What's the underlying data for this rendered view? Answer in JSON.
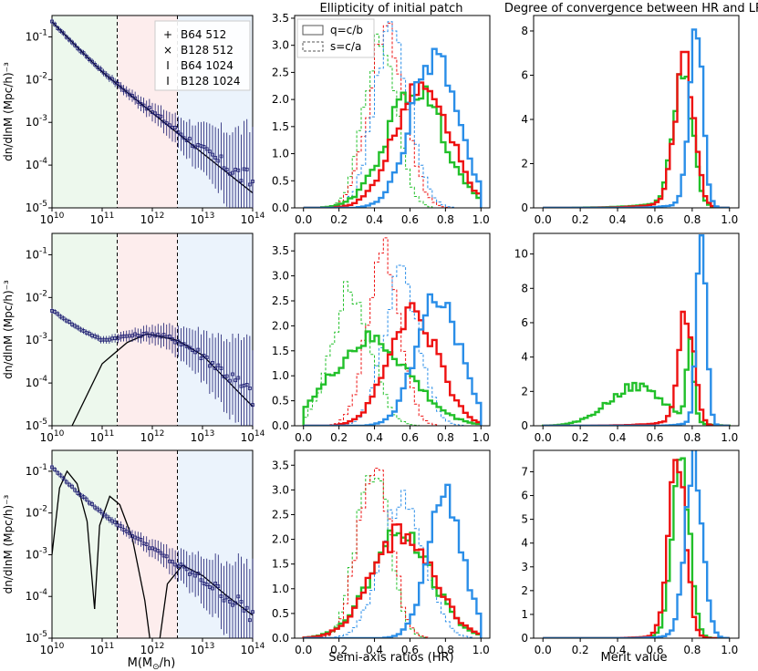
{
  "figure": {
    "col_titles": [
      "",
      "Ellipticity of initial patch",
      "Degree of convergence between HR and LR"
    ],
    "col_xlabels": [
      "M(M_⊙/h)",
      "Semi-axis ratios (HR)",
      "Merit value"
    ],
    "colors": {
      "green": "#22c02a",
      "red": "#ee1111",
      "blue": "#2a8ee8",
      "navy": "#191970",
      "band_low": "#edf8ed",
      "band_mid": "#fdeded",
      "band_high": "#ebf3fc"
    }
  },
  "mass_axes": {
    "ylabel": "dn/dlnM (Mpc/h)⁻³",
    "xticks": [
      "10^10",
      "10^11",
      "10^12",
      "10^13",
      "10^14"
    ],
    "yticks": [
      "10^-5",
      "10^-4",
      "10^-3",
      "10^-2",
      "10^-1"
    ],
    "xlim_log": [
      10,
      14
    ],
    "ylim_log": [
      -5,
      -0.5
    ],
    "band_edges_log": [
      11.3,
      12.5
    ]
  },
  "legend_mass": [
    "B64 512",
    "B128 512",
    "B64 1024",
    "B128 1024"
  ],
  "legend_ratio": [
    "q=c/b",
    "s=c/a"
  ],
  "chart_data": [
    {
      "type": "scatter",
      "panel": "row1-mass-function",
      "xscale": "log",
      "yscale": "log",
      "x": [
        10,
        10.5,
        11,
        11.5,
        12,
        12.5,
        13,
        13.5,
        14
      ],
      "y": [
        -0.65,
        -1.25,
        -1.8,
        -2.3,
        -2.75,
        -3.2,
        -3.65,
        -4.05,
        -4.4
      ],
      "model_curve": [
        [
          10,
          -0.65
        ],
        [
          11,
          -1.82
        ],
        [
          12,
          -2.78
        ],
        [
          13,
          -3.72
        ],
        [
          14,
          -4.65
        ]
      ]
    },
    {
      "type": "scatter",
      "panel": "row2-mass-function",
      "xscale": "log",
      "yscale": "log",
      "x": [
        10,
        10.5,
        11,
        11.5,
        12,
        12.5,
        13,
        13.5,
        14
      ],
      "y": [
        -2.3,
        -2.7,
        -3.0,
        -2.9,
        -2.85,
        -3.0,
        -3.35,
        -3.8,
        -4.3
      ],
      "model_curve": [
        [
          10.4,
          -5.0
        ],
        [
          11,
          -3.55
        ],
        [
          11.5,
          -3.05
        ],
        [
          11.9,
          -2.85
        ],
        [
          12.5,
          -3.0
        ],
        [
          13,
          -3.35
        ],
        [
          14,
          -4.55
        ]
      ]
    },
    {
      "type": "scatter",
      "panel": "row3-mass-function",
      "xscale": "log",
      "yscale": "log",
      "x": [
        10,
        10.5,
        11,
        11.5,
        12,
        12.5,
        13,
        13.5,
        14
      ],
      "y": [
        -0.9,
        -1.5,
        -2.0,
        -2.45,
        -2.85,
        -3.25,
        -3.6,
        -4.0,
        -4.45
      ],
      "model_curve_segments": [
        [
          [
            10,
            -3.0
          ],
          [
            10.15,
            -1.4
          ],
          [
            10.3,
            -1.0
          ],
          [
            10.5,
            -1.3
          ],
          [
            10.7,
            -2.2
          ],
          [
            10.85,
            -4.3
          ]
        ],
        [
          [
            10.85,
            -4.3
          ],
          [
            10.95,
            -2.3
          ],
          [
            11.15,
            -1.6
          ],
          [
            11.35,
            -1.8
          ],
          [
            11.6,
            -2.6
          ],
          [
            11.85,
            -4.1
          ],
          [
            11.95,
            -5.0
          ]
        ],
        [
          [
            12.15,
            -5.0
          ],
          [
            12.3,
            -3.7
          ],
          [
            12.6,
            -3.25
          ],
          [
            13,
            -3.5
          ],
          [
            13.5,
            -4.0
          ],
          [
            14,
            -4.45
          ]
        ]
      ]
    },
    {
      "type": "histogram",
      "panel": "row1-axis-ratios",
      "xlim": [
        -0.05,
        1.05
      ],
      "ylim": [
        0,
        3.55
      ],
      "xticks": [
        "0.0",
        "0.2",
        "0.4",
        "0.6",
        "0.8",
        "1.0"
      ],
      "yticks": [
        "0.0",
        "0.5",
        "1.0",
        "1.5",
        "2.0",
        "2.5",
        "3.0",
        "3.5"
      ],
      "series": [
        {
          "name": "s=c/a",
          "style": "dashed",
          "color": "green",
          "peak_x": 0.43,
          "peak_y": 3.1,
          "width": 0.09
        },
        {
          "name": "s=c/a",
          "style": "dashed",
          "color": "red",
          "peak_x": 0.47,
          "peak_y": 3.3,
          "width": 0.1
        },
        {
          "name": "s=c/a",
          "style": "dashed",
          "color": "blue",
          "peak_x": 0.5,
          "peak_y": 3.25,
          "width": 0.1
        },
        {
          "name": "q=c/b",
          "style": "solid",
          "color": "green",
          "peak_x": 0.63,
          "peak_y": 2.2,
          "width": 0.16
        },
        {
          "name": "q=c/b",
          "style": "solid",
          "color": "red",
          "peak_x": 0.67,
          "peak_y": 2.4,
          "width": 0.15
        },
        {
          "name": "q=c/b",
          "style": "solid",
          "color": "blue",
          "peak_x": 0.74,
          "peak_y": 2.85,
          "width": 0.13
        }
      ]
    },
    {
      "type": "histogram",
      "panel": "row2-axis-ratios",
      "xlim": [
        -0.05,
        1.05
      ],
      "ylim": [
        0,
        3.85
      ],
      "xticks": [
        "0.0",
        "0.2",
        "0.4",
        "0.6",
        "0.8",
        "1.0"
      ],
      "yticks": [
        "0.0",
        "0.5",
        "1.0",
        "1.5",
        "2.0",
        "2.5",
        "3.0",
        "3.5"
      ],
      "series": [
        {
          "name": "s=c/a",
          "style": "dashed",
          "color": "green",
          "peak_x": 0.27,
          "peak_y": 2.8,
          "width": 0.11
        },
        {
          "name": "s=c/a",
          "style": "dashed",
          "color": "red",
          "peak_x": 0.45,
          "peak_y": 3.5,
          "width": 0.09
        },
        {
          "name": "s=c/a",
          "style": "dashed",
          "color": "blue",
          "peak_x": 0.55,
          "peak_y": 2.95,
          "width": 0.1
        },
        {
          "name": "q=c/b",
          "style": "solid",
          "color": "green",
          "peak_x": 0.38,
          "peak_y": 1.7,
          "width": 0.22
        },
        {
          "name": "q=c/b",
          "style": "solid",
          "color": "red",
          "peak_x": 0.62,
          "peak_y": 2.25,
          "width": 0.14
        },
        {
          "name": "q=c/b",
          "style": "solid",
          "color": "blue",
          "peak_x": 0.76,
          "peak_y": 2.65,
          "width": 0.12
        }
      ]
    },
    {
      "type": "histogram",
      "panel": "row3-axis-ratios",
      "xlim": [
        -0.05,
        1.05
      ],
      "ylim": [
        0,
        3.8
      ],
      "xticks": [
        "0.0",
        "0.2",
        "0.4",
        "0.6",
        "0.8",
        "1.0"
      ],
      "yticks": [
        "0.0",
        "0.5",
        "1.0",
        "1.5",
        "2.0",
        "2.5",
        "3.0",
        "3.5"
      ],
      "series": [
        {
          "name": "s=c/a",
          "style": "dashed",
          "color": "green",
          "peak_x": 0.39,
          "peak_y": 3.55,
          "width": 0.09
        },
        {
          "name": "s=c/a",
          "style": "dashed",
          "color": "red",
          "peak_x": 0.4,
          "peak_y": 3.6,
          "width": 0.09
        },
        {
          "name": "s=c/a",
          "style": "dashed",
          "color": "blue",
          "peak_x": 0.56,
          "peak_y": 2.85,
          "width": 0.12
        },
        {
          "name": "q=c/b",
          "style": "solid",
          "color": "green",
          "peak_x": 0.55,
          "peak_y": 2.1,
          "width": 0.17
        },
        {
          "name": "q=c/b",
          "style": "solid",
          "color": "red",
          "peak_x": 0.56,
          "peak_y": 2.15,
          "width": 0.17
        },
        {
          "name": "q=c/b",
          "style": "solid",
          "color": "blue",
          "peak_x": 0.8,
          "peak_y": 2.8,
          "width": 0.1
        }
      ]
    },
    {
      "type": "histogram",
      "panel": "row1-merit",
      "xlim": [
        -0.05,
        1.05
      ],
      "ylim": [
        0,
        8.7
      ],
      "xticks": [
        "0.0",
        "0.2",
        "0.4",
        "0.6",
        "0.8",
        "1.0"
      ],
      "yticks": [
        "0",
        "2",
        "4",
        "6",
        "8"
      ],
      "series": [
        {
          "name": "merit",
          "color": "green",
          "peak_x": 0.75,
          "peak_y": 6.3,
          "width": 0.05,
          "tail": 0.06
        },
        {
          "name": "merit",
          "color": "red",
          "peak_x": 0.76,
          "peak_y": 6.7,
          "width": 0.05,
          "tail": 0.05
        },
        {
          "name": "merit",
          "color": "blue",
          "peak_x": 0.82,
          "peak_y": 8.4,
          "width": 0.035,
          "tail": 0.03
        }
      ]
    },
    {
      "type": "histogram",
      "panel": "row2-merit",
      "xlim": [
        -0.05,
        1.05
      ],
      "ylim": [
        0,
        11.2
      ],
      "xticks": [
        "0.0",
        "0.2",
        "0.4",
        "0.6",
        "0.8",
        "1.0"
      ],
      "yticks": [
        "0",
        "2",
        "4",
        "6",
        "8",
        "10"
      ],
      "series": [
        {
          "name": "merit",
          "color": "green",
          "peak_x": 0.5,
          "peak_y": 2.3,
          "width": 0.15,
          "spike_x": 0.79,
          "spike_y": 4.2
        },
        {
          "name": "merit",
          "color": "red",
          "peak_x": 0.77,
          "peak_y": 6.6,
          "width": 0.04,
          "tail": 0.05
        },
        {
          "name": "merit",
          "color": "blue",
          "peak_x": 0.85,
          "peak_y": 10.8,
          "width": 0.025,
          "tail": 0.02
        }
      ]
    },
    {
      "type": "histogram",
      "panel": "row3-merit",
      "xlim": [
        -0.05,
        1.05
      ],
      "ylim": [
        0,
        7.9
      ],
      "xticks": [
        "0.0",
        "0.2",
        "0.4",
        "0.6",
        "0.8",
        "1.0"
      ],
      "yticks": [
        "0",
        "1",
        "2",
        "3",
        "4",
        "5",
        "6",
        "7"
      ],
      "series": [
        {
          "name": "merit",
          "color": "green",
          "peak_x": 0.74,
          "peak_y": 7.4,
          "width": 0.045,
          "tail": 0.03
        },
        {
          "name": "merit",
          "color": "red",
          "peak_x": 0.72,
          "peak_y": 7.1,
          "width": 0.045,
          "tail": 0.03
        },
        {
          "name": "merit",
          "color": "blue",
          "peak_x": 0.81,
          "peak_y": 7.5,
          "width": 0.045,
          "tail": 0.03
        }
      ]
    }
  ]
}
